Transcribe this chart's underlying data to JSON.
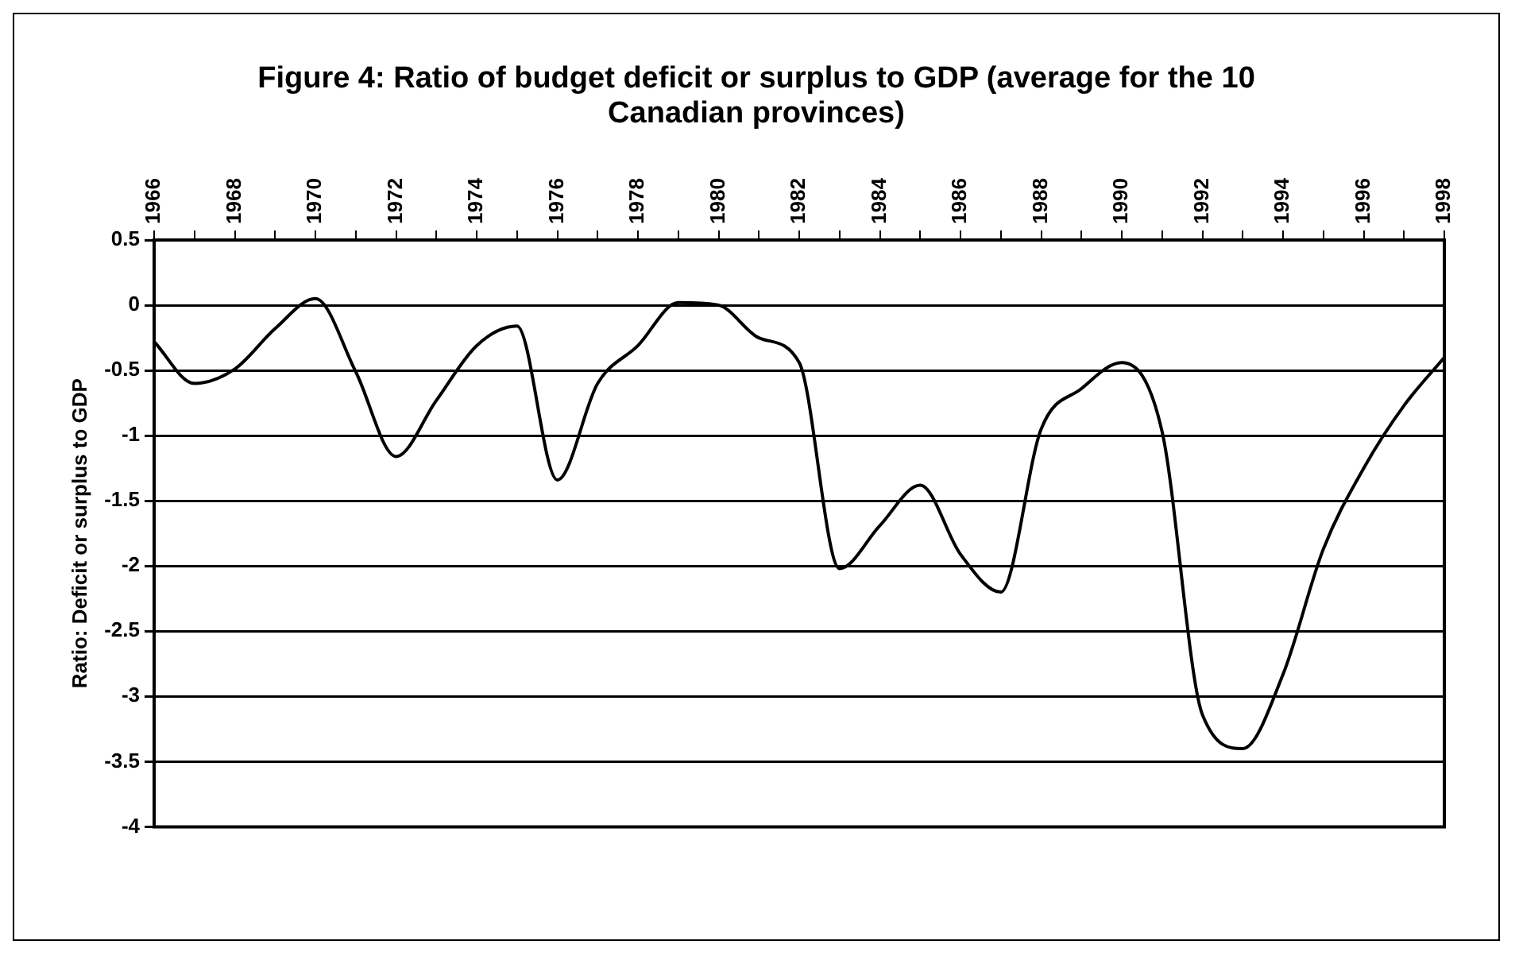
{
  "chart_data": {
    "type": "line",
    "title": "Figure 4: Ratio of budget deficit or surplus to GDP (average for the 10 Canadian provinces)",
    "ylabel": "Ratio: Deficit or surplus to GDP",
    "categories": [
      "1966",
      null,
      "1968",
      null,
      "1970",
      null,
      "1972",
      null,
      "1974",
      null,
      "1976",
      null,
      "1978",
      null,
      "1980",
      null,
      "1982",
      null,
      "1984",
      null,
      "1986",
      null,
      "1988",
      null,
      "1990",
      null,
      "1992",
      null,
      "1994",
      null,
      "1996",
      null,
      "1998"
    ],
    "series": [
      {
        "color": "#000000",
        "values": [
          -0.28,
          -0.6,
          -0.49,
          -0.18,
          0.05,
          -0.51,
          -1.16,
          -0.73,
          -0.31,
          -0.16,
          -1.34,
          -0.6,
          -0.31,
          0.02,
          0,
          -0.25,
          -0.44,
          -2.02,
          -1.69,
          -1.38,
          -1.91,
          -2.2,
          -0.95,
          -0.64,
          -0.44,
          -0.97,
          -3.14,
          -3.4,
          -2.83,
          -1.87,
          -1.25,
          -0.77,
          -0.4
        ]
      }
    ],
    "ylim": [
      -4,
      0.5
    ],
    "yticks": [
      -4,
      -3.5,
      -3,
      -2.5,
      -2,
      -1.5,
      -1,
      -0.5,
      0,
      0.5
    ],
    "grid": "y",
    "legend": false,
    "marker": "none",
    "line_style": "solid"
  }
}
